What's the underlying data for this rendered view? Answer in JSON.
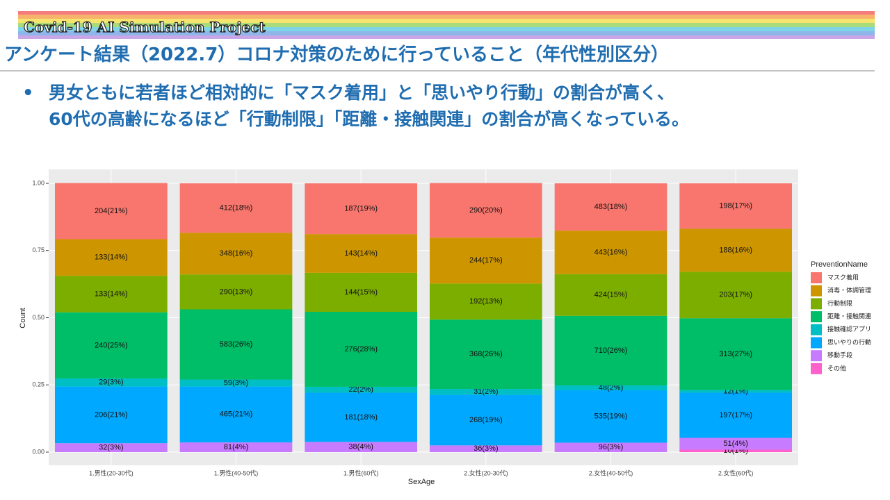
{
  "header": {
    "banner": "Covid-19 AI Simulation Project",
    "title": "アンケート結果（2022.7）コロナ対策のために行っていること（年代性別区分）",
    "bullets": [
      "男女ともに若者ほど相対的に「マスク着用」と「思いやり行動」の割合が高く、",
      "60代の高齢になるほど「行動制限」「距離・接触関連」の割合が高くなっている。"
    ]
  },
  "chart_data": {
    "type": "stacked_bar",
    "x_label": "SexAge",
    "y_label": "Count",
    "legend_title": "PreventionName",
    "categories": [
      "1.男性(20-30代)",
      "1.男性(40-50代)",
      "1.男性(60代)",
      "2.女性(20-30代)",
      "2.女性(40-50代)",
      "2.女性(60代)"
    ],
    "ylim": [
      0,
      1
    ],
    "yticks": [
      {
        "value": 0,
        "label": "0.00"
      },
      {
        "value": 0.25,
        "label": "0.25"
      },
      {
        "value": 0.5,
        "label": "0.50"
      },
      {
        "value": 0.75,
        "label": "0.75"
      },
      {
        "value": 1,
        "label": "1.00"
      }
    ],
    "grid": true,
    "series": [
      {
        "name": "マスク着用",
        "color": "#F8766D",
        "values": [
          0.209,
          0.184,
          0.189,
          0.203,
          0.176,
          0.169
        ],
        "value_labels": [
          "204(21%)",
          "412(18%)",
          "187(19%)",
          "290(20%)",
          "483(18%)",
          "198(17%)"
        ]
      },
      {
        "name": "消毒・体調管理",
        "color": "#CD9600",
        "values": [
          0.136,
          0.155,
          0.144,
          0.171,
          0.162,
          0.16
        ],
        "value_labels": [
          "133(14%)",
          "348(16%)",
          "143(14%)",
          "244(17%)",
          "443(16%)",
          "188(16%)"
        ]
      },
      {
        "name": "行動制限",
        "color": "#7CAE00",
        "values": [
          0.136,
          0.13,
          0.145,
          0.134,
          0.155,
          0.173
        ],
        "value_labels": [
          "133(14%)",
          "290(13%)",
          "144(15%)",
          "192(13%)",
          "424(15%)",
          "203(17%)"
        ]
      },
      {
        "name": "距離・接触関連",
        "color": "#00BE67",
        "values": [
          0.246,
          0.261,
          0.279,
          0.258,
          0.259,
          0.267
        ],
        "value_labels": [
          "240(25%)",
          "583(26%)",
          "276(28%)",
          "368(26%)",
          "710(26%)",
          "313(27%)"
        ]
      },
      {
        "name": "接触確認アプリ",
        "color": "#00BFC4",
        "values": [
          0.03,
          0.026,
          0.022,
          0.022,
          0.018,
          0.01
        ],
        "value_labels": [
          "29(3%)",
          "59(3%)",
          "22(2%)",
          "31(2%)",
          "48(2%)",
          "12(1%)"
        ]
      },
      {
        "name": "思いやりの行動",
        "color": "#00A9FF",
        "values": [
          0.211,
          0.208,
          0.183,
          0.188,
          0.195,
          0.168
        ],
        "value_labels": [
          "206(21%)",
          "465(21%)",
          "181(18%)",
          "268(19%)",
          "535(19%)",
          "197(17%)"
        ]
      },
      {
        "name": "移動手段",
        "color": "#C77CFF",
        "values": [
          0.033,
          0.036,
          0.038,
          0.025,
          0.035,
          0.044
        ],
        "value_labels": [
          "32(3%)",
          "81(4%)",
          "38(4%)",
          "36(3%)",
          "96(3%)",
          "51(4%)"
        ]
      },
      {
        "name": "その他",
        "color": "#FF61CC",
        "values": [
          null,
          null,
          null,
          null,
          null,
          0.009
        ],
        "value_labels": [
          null,
          null,
          null,
          null,
          null,
          "10(1%)"
        ]
      }
    ]
  }
}
